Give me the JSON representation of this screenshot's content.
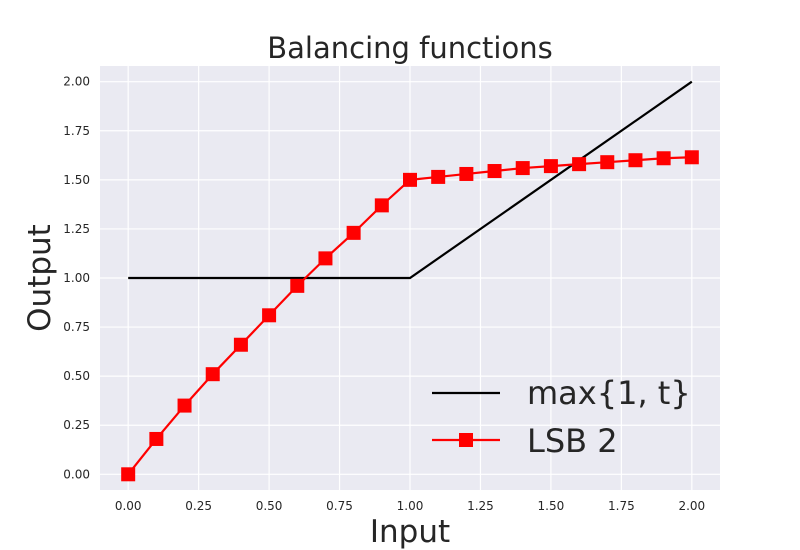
{
  "chart_data": {
    "type": "line",
    "title": "Balancing functions",
    "xlabel": "Input",
    "ylabel": "Output",
    "xlim": [
      -0.1,
      2.1
    ],
    "ylim": [
      -0.08,
      2.08
    ],
    "xticks": [
      "0.00",
      "0.25",
      "0.50",
      "0.75",
      "1.00",
      "1.25",
      "1.50",
      "1.75",
      "2.00"
    ],
    "yticks": [
      "0.00",
      "0.25",
      "0.50",
      "0.75",
      "1.00",
      "1.25",
      "1.50",
      "1.75",
      "2.00"
    ],
    "grid": true,
    "legend_position": "lower-right",
    "background": "#eaeaf2",
    "series": [
      {
        "name": "max{1, t}",
        "color": "#000000",
        "marker": "none",
        "x": [
          0.0,
          1.0,
          2.0
        ],
        "y": [
          1.0,
          1.0,
          2.0
        ]
      },
      {
        "name": "LSB 2",
        "color": "#ff0000",
        "marker": "square",
        "x": [
          0.0,
          0.1,
          0.2,
          0.3,
          0.4,
          0.5,
          0.6,
          0.7,
          0.8,
          0.9,
          1.0,
          1.1,
          1.2,
          1.3,
          1.4,
          1.5,
          1.6,
          1.7,
          1.8,
          1.9,
          2.0
        ],
        "y": [
          0.0,
          0.18,
          0.35,
          0.51,
          0.66,
          0.81,
          0.96,
          1.1,
          1.23,
          1.37,
          1.5,
          1.515,
          1.53,
          1.545,
          1.56,
          1.57,
          1.58,
          1.59,
          1.6,
          1.61,
          1.615
        ]
      }
    ]
  }
}
